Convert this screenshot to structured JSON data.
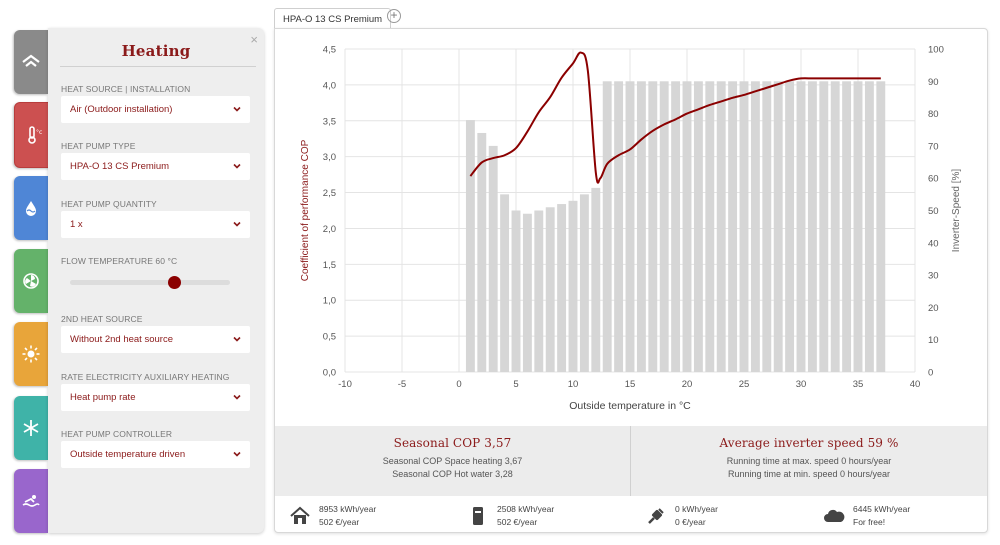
{
  "side_tabs": [
    {
      "name": "building",
      "color": "#8a8a8a"
    },
    {
      "name": "heating",
      "color": "#cc5050"
    },
    {
      "name": "hot-water",
      "color": "#4f86d6"
    },
    {
      "name": "ventilation",
      "color": "#64b26a"
    },
    {
      "name": "solar",
      "color": "#e8a53a"
    },
    {
      "name": "cooling",
      "color": "#3fb3a8"
    },
    {
      "name": "pool",
      "color": "#9966cc"
    }
  ],
  "panel": {
    "title": "Heating",
    "close": "×",
    "heat_source_label": "HEAT SOURCE | INSTALLATION",
    "heat_source_value": "Air (Outdoor installation)",
    "pump_type_label": "HEAT PUMP TYPE",
    "pump_type_value": "HPA-O 13 CS Premium",
    "quantity_label": "HEAT PUMP QUANTITY",
    "quantity_value": "1 x",
    "flow_temp_label": "FLOW TEMPERATURE 60 °C",
    "flow_temp_fraction": 0.65,
    "second_source_label": "2ND HEAT SOURCE",
    "second_source_value": "Without 2nd heat source",
    "rate_label": "RATE ELECTRICITY AUXILIARY HEATING",
    "rate_value": "Heat pump rate",
    "controller_label": "HEAT PUMP CONTROLLER",
    "controller_value": "Outside temperature driven"
  },
  "tabs": {
    "active": "HPA-O 13 CS Premium",
    "add": "+"
  },
  "chart_data": {
    "type": "bar",
    "xlabel": "Outside temperature in °C",
    "ylabel_left": "Coefficient of performance COP",
    "ylabel_right": "Inverter-Speed [%]",
    "xlim": [
      -10,
      40
    ],
    "xticks": [
      "-10",
      "-5",
      "0",
      "5",
      "10",
      "15",
      "20",
      "25",
      "30",
      "35",
      "40"
    ],
    "ylim_left": [
      0,
      4.5
    ],
    "yticks_left": [
      "0,0",
      "0,5",
      "1,0",
      "1,5",
      "2,0",
      "2,5",
      "3,0",
      "3,5",
      "4,0",
      "4,5"
    ],
    "ylim_right": [
      0,
      100
    ],
    "yticks_right": [
      "0",
      "10",
      "20",
      "30",
      "40",
      "50",
      "60",
      "70",
      "80",
      "90",
      "100"
    ],
    "series": [
      {
        "name": "Inverter-Speed [%]",
        "axis": "right",
        "x": [
          1,
          2,
          3,
          4,
          5,
          6,
          7,
          8,
          9,
          10,
          11,
          12,
          13,
          14,
          15,
          16,
          17,
          18,
          19,
          20,
          21,
          22,
          23,
          24,
          25,
          26,
          27,
          28,
          29,
          30,
          31,
          32,
          33,
          34,
          35,
          36,
          37
        ],
        "values": [
          78,
          74,
          70,
          55,
          50,
          49,
          50,
          51,
          52,
          53,
          55,
          57,
          90,
          90,
          90,
          90,
          90,
          90,
          90,
          90,
          90,
          90,
          90,
          90,
          90,
          90,
          90,
          90,
          90,
          90,
          90,
          90,
          90,
          90,
          90,
          90,
          90
        ]
      },
      {
        "name": "Coefficient of performance COP",
        "axis": "left",
        "x": [
          1,
          2,
          3,
          4,
          5,
          6,
          7,
          8,
          9,
          10,
          10.7,
          11.3,
          12,
          12.4,
          13,
          14,
          15,
          16,
          17,
          18,
          19,
          20,
          21,
          22,
          23,
          24,
          25,
          26,
          27,
          28,
          29,
          30,
          31,
          32,
          33,
          34,
          35,
          36,
          37
        ],
        "values": [
          2.73,
          2.92,
          2.98,
          3.02,
          3.12,
          3.35,
          3.62,
          3.83,
          4.1,
          4.3,
          4.45,
          4.2,
          2.78,
          2.7,
          2.9,
          3.02,
          3.1,
          3.24,
          3.36,
          3.45,
          3.52,
          3.6,
          3.66,
          3.72,
          3.77,
          3.82,
          3.86,
          3.91,
          3.96,
          4.01,
          4.06,
          4.09,
          4.09,
          4.09,
          4.09,
          4.09,
          4.09,
          4.09,
          4.09
        ]
      }
    ],
    "colors": {
      "bars": "#d6d6d6",
      "line": "#8b0000"
    }
  },
  "stats": {
    "cop_title": "Seasonal COP 3,57",
    "cop_space": "Seasonal COP Space heating 3,67",
    "cop_water": "Seasonal COP Hot water 3,28",
    "inv_title": "Average inverter speed 59 %",
    "inv_max": "Running time at max. speed 0 hours/year",
    "inv_min": "Running time at min. speed 0 hours/year"
  },
  "footer": [
    {
      "icon": "house-icon",
      "line1": "8953 kWh/year",
      "line2": "502 €/year"
    },
    {
      "icon": "boiler-icon",
      "line1": "2508 kWh/year",
      "line2": "502 €/year"
    },
    {
      "icon": "plug-icon",
      "line1": "0 kWh/year",
      "line2": "0 €/year"
    },
    {
      "icon": "cloud-icon",
      "line1": "6445 kWh/year",
      "line2": "For free!"
    }
  ]
}
